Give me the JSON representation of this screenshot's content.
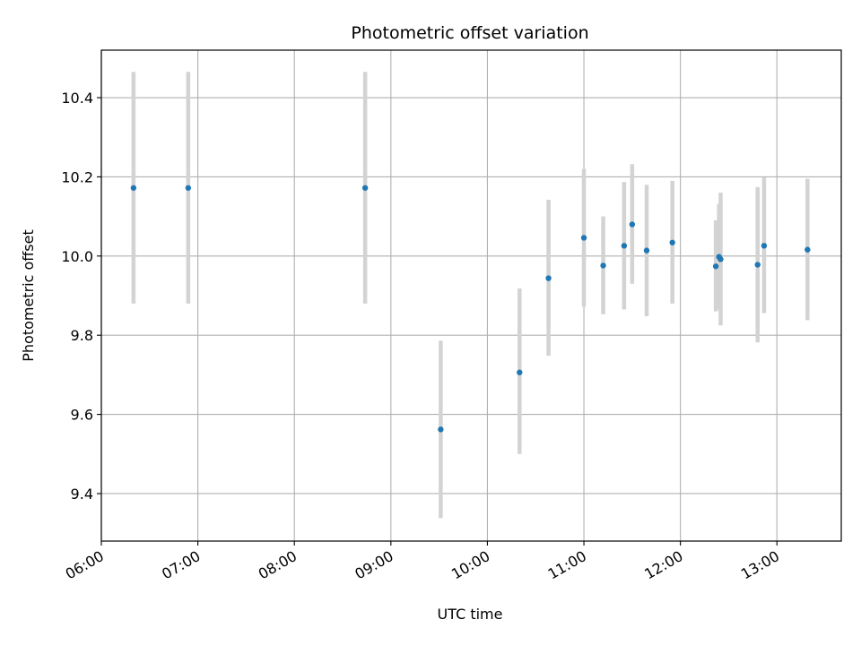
{
  "chart_data": {
    "type": "scatter",
    "title": "Photometric offset variation",
    "xlabel": "UTC time",
    "ylabel": "Photometric offset",
    "xlim": [
      "06:00",
      "13:40"
    ],
    "ylim": [
      9.28,
      10.52
    ],
    "x_ticks": [
      "06:00",
      "07:00",
      "08:00",
      "09:00",
      "10:00",
      "11:00",
      "12:00",
      "13:00"
    ],
    "y_ticks": [
      9.4,
      9.6,
      9.8,
      10.0,
      10.2,
      10.4
    ],
    "y_tick_labels": [
      "9.4",
      "9.6",
      "9.8",
      "10.0",
      "10.2",
      "10.4"
    ],
    "grid": true,
    "colors": {
      "marker": "#1f77b4",
      "errorbar": "#d3d3d3",
      "grid": "#b0b0b0"
    },
    "series": [
      {
        "points": [
          {
            "x": "06:20",
            "y": 10.172,
            "yerr_low": 9.88,
            "yerr_high": 10.465
          },
          {
            "x": "06:54",
            "y": 10.172,
            "yerr_low": 9.88,
            "yerr_high": 10.465
          },
          {
            "x": "08:44",
            "y": 10.172,
            "yerr_low": 9.88,
            "yerr_high": 10.465
          },
          {
            "x": "09:31",
            "y": 9.562,
            "yerr_low": 9.338,
            "yerr_high": 9.786
          },
          {
            "x": "10:20",
            "y": 9.706,
            "yerr_low": 9.5,
            "yerr_high": 9.918
          },
          {
            "x": "10:38",
            "y": 9.944,
            "yerr_low": 9.748,
            "yerr_high": 10.142
          },
          {
            "x": "11:00",
            "y": 10.046,
            "yerr_low": 9.872,
            "yerr_high": 10.22
          },
          {
            "x": "11:12",
            "y": 9.976,
            "yerr_low": 9.853,
            "yerr_high": 10.1
          },
          {
            "x": "11:25",
            "y": 10.026,
            "yerr_low": 9.865,
            "yerr_high": 10.187
          },
          {
            "x": "11:30",
            "y": 10.08,
            "yerr_low": 9.93,
            "yerr_high": 10.232
          },
          {
            "x": "11:39",
            "y": 10.014,
            "yerr_low": 9.848,
            "yerr_high": 10.18
          },
          {
            "x": "11:55",
            "y": 10.034,
            "yerr_low": 9.88,
            "yerr_high": 10.19
          },
          {
            "x": "12:22",
            "y": 9.974,
            "yerr_low": 9.86,
            "yerr_high": 10.09
          },
          {
            "x": "12:24",
            "y": 9.998,
            "yerr_low": 9.865,
            "yerr_high": 10.132
          },
          {
            "x": "12:25",
            "y": 9.992,
            "yerr_low": 9.825,
            "yerr_high": 10.16
          },
          {
            "x": "12:48",
            "y": 9.978,
            "yerr_low": 9.782,
            "yerr_high": 10.174
          },
          {
            "x": "12:52",
            "y": 10.026,
            "yerr_low": 9.856,
            "yerr_high": 10.198
          },
          {
            "x": "13:19",
            "y": 10.016,
            "yerr_low": 9.838,
            "yerr_high": 10.195
          }
        ]
      }
    ]
  }
}
